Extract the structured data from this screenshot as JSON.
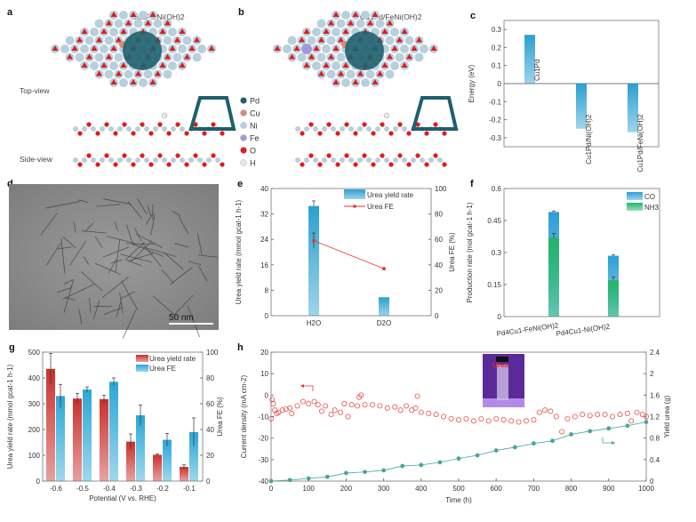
{
  "panels": {
    "a": {
      "label": "a",
      "title": "Cu1Pd/Ni(OH)2",
      "top_view": "Top-view",
      "side_view": "Side-view"
    },
    "b": {
      "label": "b",
      "title": "Cu1Pd/FeNi(OH)2"
    },
    "legend_atoms": [
      {
        "name": "Pd",
        "color": "#1f5f6e"
      },
      {
        "name": "Cu",
        "color": "#d9897a"
      },
      {
        "name": "Ni",
        "color": "#b8cfdc"
      },
      {
        "name": "Fe",
        "color": "#9f9ae0"
      },
      {
        "name": "O",
        "color": "#e01b1b"
      },
      {
        "name": "H",
        "color": "#e8e8e8"
      }
    ],
    "d": {
      "label": "d",
      "scale_bar": "50 nm"
    },
    "h_inset": {
      "text": "Urea"
    }
  },
  "chart_data": [
    {
      "id": "c",
      "label": "c",
      "type": "bar",
      "ylabel": "Energy (eV)",
      "ylim": [
        -0.35,
        0.35
      ],
      "yticks": [
        -0.3,
        -0.2,
        -0.1,
        0.0,
        0.1,
        0.2,
        0.3
      ],
      "categories": [
        "Cu1Pd",
        "Cu1Pd/Ni(OH)2",
        "Cu1Pd/FeNi(OH)2"
      ],
      "values": [
        0.27,
        -0.25,
        -0.27
      ],
      "color": "#2aa0cf"
    },
    {
      "id": "e",
      "label": "e",
      "type": "bar+line",
      "ylabel": "Urea yield rate (mmol gcat-1 h-1)",
      "y2label": "Urea FE (%)",
      "ylim": [
        0,
        40
      ],
      "y2lim": [
        0,
        100
      ],
      "yticks": [
        0,
        8,
        16,
        24,
        32,
        40
      ],
      "y2ticks": [
        0,
        20,
        40,
        60,
        80,
        100
      ],
      "categories": [
        "H2O",
        "D2O"
      ],
      "series": [
        {
          "name": "Urea yield rate",
          "type": "bar",
          "values": [
            34.5,
            5.8
          ],
          "errors": [
            1.6,
            0
          ],
          "color": "#2aa0cf"
        },
        {
          "name": "Urea FE",
          "type": "line",
          "axis": "right",
          "values": [
            59,
            37
          ],
          "errors": [
            6,
            0
          ],
          "color": "#e53935"
        }
      ],
      "legend": "top-right"
    },
    {
      "id": "f",
      "label": "f",
      "type": "bar",
      "ylabel": "Production rate (mol gcat-1 h-1)",
      "ylim": [
        0,
        0.6
      ],
      "yticks": [
        0.0,
        0.15,
        0.3,
        0.45,
        0.6
      ],
      "categories": [
        "Pd4Cu1-FeNi(OH)2",
        "Pd4Cu1-Ni(OH)2"
      ],
      "series": [
        {
          "name": "CO",
          "values": [
            0.49,
            0.285
          ],
          "errors": [
            0.005,
            0.004
          ],
          "color": "#2a9fd6"
        },
        {
          "name": "NH3",
          "values": [
            0.37,
            0.17
          ],
          "errors": [
            0.02,
            0.015
          ],
          "color": "#23b56a"
        }
      ],
      "legend": "top-right"
    },
    {
      "id": "g",
      "label": "g",
      "type": "grouped-bar",
      "xlabel": "Potential (V vs. RHE)",
      "ylabel": "Urea yield rate (mmol gcat-1 h-1)",
      "y2label": "Urea FE (%)",
      "ylim": [
        0,
        500
      ],
      "y2lim": [
        0,
        100
      ],
      "yticks": [
        0,
        100,
        200,
        300,
        400,
        500
      ],
      "y2ticks": [
        0,
        20,
        40,
        60,
        80,
        100
      ],
      "categories": [
        "-0.6",
        "-0.5",
        "-0.4",
        "-0.3",
        "-0.2",
        "-0.1"
      ],
      "series": [
        {
          "name": "Urea yield rate",
          "axis": "left",
          "values": [
            435,
            320,
            318,
            153,
            102,
            55
          ],
          "errors": [
            60,
            20,
            15,
            30,
            3,
            8
          ],
          "color": "#c9302c"
        },
        {
          "name": "Urea FE",
          "axis": "right",
          "values": [
            66,
            71,
            77,
            51,
            32,
            38
          ],
          "errors": [
            9,
            2,
            3,
            8,
            5,
            11
          ],
          "color": "#2aa7d6"
        }
      ],
      "legend": "top-right"
    },
    {
      "id": "h",
      "label": "h",
      "type": "scatter+line",
      "xlabel": "Time (h)",
      "ylabel": "Current density (mA cm-2)",
      "y2label": "Yield urea (g)",
      "xlim": [
        0,
        1000
      ],
      "ylim": [
        -40,
        20
      ],
      "y2lim": [
        0,
        2.4
      ],
      "xticks": [
        0,
        100,
        200,
        300,
        400,
        500,
        600,
        700,
        800,
        900,
        1000
      ],
      "yticks": [
        -40,
        -30,
        -20,
        -10,
        0,
        10,
        20
      ],
      "y2ticks": [
        0.0,
        0.4,
        0.8,
        1.2,
        1.6,
        2.0,
        2.4
      ],
      "series": [
        {
          "name": "Current density",
          "axis": "left",
          "color": "#e53935",
          "x": [
            0,
            3,
            6,
            10,
            15,
            20,
            30,
            40,
            50,
            55,
            70,
            85,
            100,
            115,
            125,
            135,
            145,
            160,
            170,
            185,
            195,
            205,
            215,
            230,
            235,
            240,
            250,
            270,
            290,
            310,
            330,
            345,
            360,
            375,
            385,
            390,
            400,
            420,
            440,
            460,
            480,
            500,
            520,
            540,
            560,
            580,
            600,
            620,
            640,
            660,
            680,
            700,
            715,
            730,
            745,
            760,
            775,
            790,
            810,
            830,
            850,
            870,
            890,
            910,
            930,
            950,
            960,
            975,
            990,
            1000
          ],
          "y": [
            -11,
            -2,
            -4,
            -7,
            -8.5,
            -8,
            -7,
            -6.5,
            -6,
            -8.5,
            -5,
            -3,
            -4,
            -3,
            -4.5,
            -7.5,
            -5,
            -9,
            -7,
            -8,
            -4,
            -10,
            -4.5,
            -5,
            -1,
            0,
            -4.5,
            -4.5,
            -5,
            -6,
            -5.5,
            -7,
            -5,
            -7,
            -6,
            -0.5,
            -8,
            -8.5,
            -9,
            -10,
            -11,
            -11.5,
            -11,
            -12,
            -11,
            -12,
            -11,
            -11.5,
            -12,
            -12.5,
            -12,
            -11.5,
            -8,
            -7,
            -7.5,
            -10,
            -17,
            -11,
            -10,
            -9,
            -9.5,
            -9,
            -9,
            -10,
            -9,
            -8.5,
            -12,
            -8,
            -9,
            -10
          ]
        },
        {
          "name": "Yield urea",
          "axis": "right",
          "color": "#4aa59c",
          "x": [
            0,
            50,
            100,
            150,
            200,
            250,
            300,
            350,
            400,
            450,
            500,
            550,
            600,
            650,
            700,
            750,
            800,
            850,
            900,
            950,
            1000
          ],
          "y": [
            0,
            0.02,
            0.05,
            0.08,
            0.15,
            0.17,
            0.2,
            0.28,
            0.3,
            0.35,
            0.42,
            0.48,
            0.57,
            0.63,
            0.7,
            0.75,
            0.87,
            0.93,
            0.98,
            1.03,
            1.1
          ]
        }
      ]
    }
  ]
}
